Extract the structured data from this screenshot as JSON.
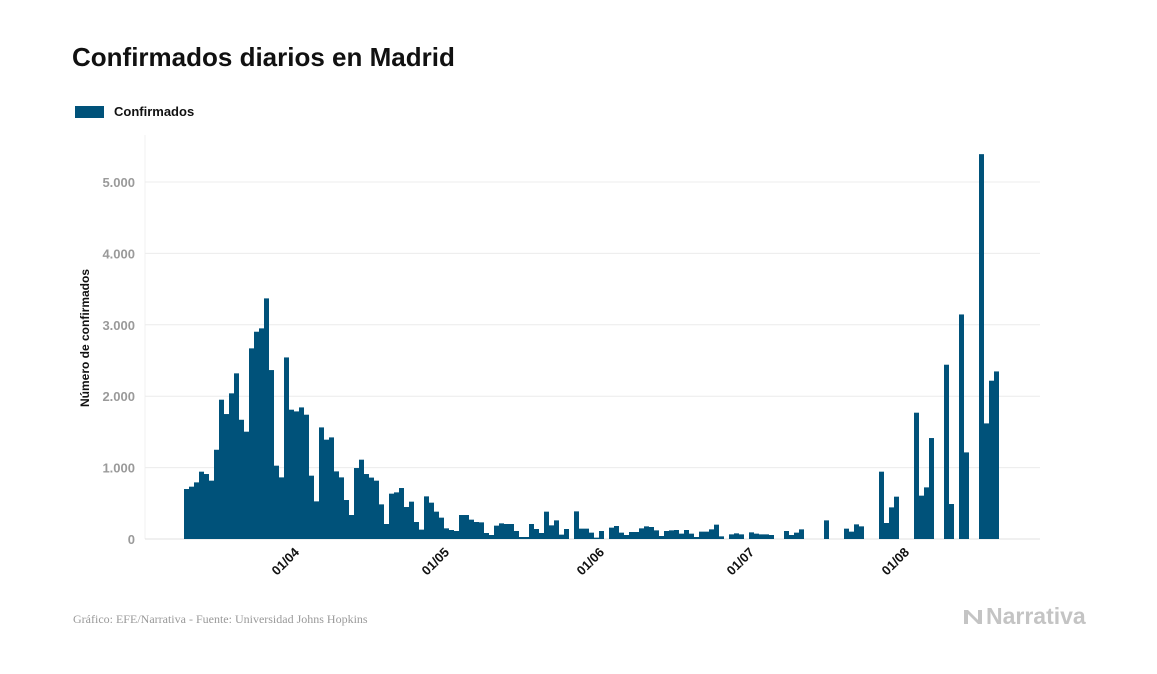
{
  "colors": {
    "bar": "#00527a",
    "grid": "#ececec",
    "tick_text": "#9a9a9a"
  },
  "chart_data": {
    "type": "bar",
    "title": "Confirmados diarios en Madrid",
    "ylabel": "Número de confirmados",
    "xlabel": "",
    "ylim": [
      0,
      5600
    ],
    "grid": true,
    "legend_placement": "top-left",
    "yticks": [
      0,
      1000,
      2000,
      3000,
      4000,
      5000
    ],
    "ytick_labels": [
      "0",
      "1.000",
      "2.000",
      "3.000",
      "4.000",
      "5.000"
    ],
    "xtick_labels": [
      "01/04",
      "01/05",
      "01/06",
      "01/07",
      "01/08"
    ],
    "series": [
      {
        "name": "Confirmados",
        "x": [
          "08/03",
          "09/03",
          "10/03",
          "11/03",
          "12/03",
          "13/03",
          "14/03",
          "15/03",
          "16/03",
          "17/03",
          "18/03",
          "19/03",
          "20/03",
          "21/03",
          "22/03",
          "23/03",
          "24/03",
          "25/03",
          "26/03",
          "27/03",
          "28/03",
          "29/03",
          "30/03",
          "31/03",
          "01/04",
          "02/04",
          "03/04",
          "04/04",
          "05/04",
          "06/04",
          "07/04",
          "08/04",
          "09/04",
          "10/04",
          "11/04",
          "12/04",
          "13/04",
          "14/04",
          "15/04",
          "16/04",
          "17/04",
          "18/04",
          "19/04",
          "20/04",
          "21/04",
          "22/04",
          "23/04",
          "24/04",
          "25/04",
          "26/04",
          "27/04",
          "28/04",
          "29/04",
          "30/04",
          "01/05",
          "02/05",
          "03/05",
          "04/05",
          "05/05",
          "06/05",
          "07/05",
          "08/05",
          "09/05",
          "10/05",
          "11/05",
          "12/05",
          "13/05",
          "14/05",
          "15/05",
          "16/05",
          "17/05",
          "18/05",
          "19/05",
          "20/05",
          "21/05",
          "22/05",
          "23/05",
          "24/05",
          "25/05",
          "26/05",
          "27/05",
          "28/05",
          "29/05",
          "30/05",
          "31/05",
          "01/06",
          "02/06",
          "03/06",
          "04/06",
          "05/06",
          "06/06",
          "07/06",
          "08/06",
          "09/06",
          "10/06",
          "11/06",
          "12/06",
          "13/06",
          "14/06",
          "15/06",
          "16/06",
          "17/06",
          "18/06",
          "19/06",
          "20/06",
          "21/06",
          "22/06",
          "23/06",
          "24/06",
          "25/06",
          "26/06",
          "27/06",
          "28/06",
          "29/06",
          "30/06",
          "01/07",
          "02/07",
          "03/07",
          "04/07",
          "05/07",
          "06/07",
          "07/07",
          "08/07",
          "09/07",
          "10/07",
          "11/07",
          "12/07",
          "13/07",
          "14/07",
          "15/07",
          "16/07",
          "17/07",
          "18/07",
          "19/07",
          "20/07",
          "21/07",
          "22/07",
          "23/07",
          "24/07",
          "25/07",
          "26/07",
          "27/07",
          "28/07",
          "29/07",
          "30/07",
          "31/07",
          "01/08",
          "02/08",
          "03/08",
          "04/08",
          "05/08",
          "06/08",
          "07/08",
          "08/08",
          "09/08",
          "10/08",
          "11/08",
          "12/08",
          "13/08",
          "14/08",
          "15/08",
          "16/08",
          "17/08"
        ],
        "values": [
          700,
          733,
          793,
          943,
          910,
          817,
          1250,
          1951,
          1750,
          2040,
          2320,
          1670,
          1503,
          2670,
          2903,
          2950,
          3370,
          2366,
          1027,
          863,
          2543,
          1811,
          1787,
          1843,
          1741,
          887,
          527,
          1563,
          1391,
          1423,
          947,
          863,
          546,
          336,
          994,
          1111,
          910,
          860,
          817,
          485,
          210,
          635,
          653,
          714,
          448,
          523,
          238,
          131,
          597,
          509,
          383,
          299,
          149,
          126,
          112,
          336,
          336,
          271,
          238,
          233,
          84,
          56,
          187,
          219,
          210,
          210,
          112,
          28,
          28,
          210,
          140,
          84,
          383,
          191,
          261,
          61,
          140,
          0,
          387,
          145,
          145,
          89,
          19,
          112,
          0,
          159,
          182,
          89,
          56,
          98,
          98,
          149,
          177,
          168,
          121,
          42,
          112,
          121,
          126,
          75,
          126,
          75,
          28,
          103,
          103,
          135,
          201,
          37,
          0,
          65,
          79,
          65,
          0,
          93,
          75,
          65,
          65,
          56,
          0,
          0,
          112,
          56,
          89,
          135,
          0,
          0,
          0,
          0,
          261,
          0,
          0,
          0,
          145,
          103,
          205,
          177,
          0,
          0,
          0,
          943,
          224,
          443,
          593,
          0,
          0,
          0,
          1769,
          607,
          723,
          1414,
          0,
          0,
          2441,
          490,
          0,
          3145,
          1213,
          0,
          0,
          5390,
          1619,
          2217,
          2347
        ]
      }
    ]
  },
  "footer": {
    "source": "Gráfico: EFE/Narrativa - Fuente: Universidad Johns Hopkins"
  },
  "logo": {
    "text": "Narrativa"
  }
}
